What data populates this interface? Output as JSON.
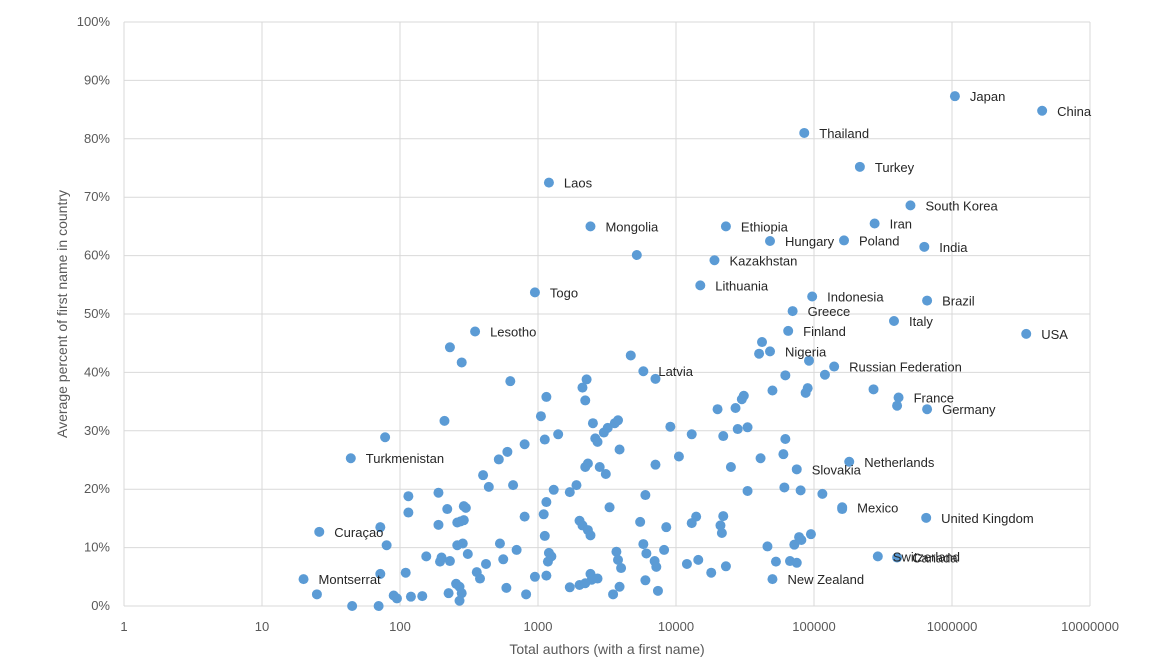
{
  "chart_data": {
    "type": "scatter",
    "xlabel": "Total authors (with a first name)",
    "ylabel": "Average percent of first name in country",
    "x_scale": "log",
    "xlim": [
      1,
      10000000
    ],
    "ylim": [
      0,
      1
    ],
    "x_ticks": [
      "1",
      "10",
      "100",
      "1000",
      "10000",
      "100000",
      "1000000",
      "10000000"
    ],
    "y_ticks": [
      "0%",
      "10%",
      "20%",
      "30%",
      "40%",
      "50%",
      "60%",
      "70%",
      "80%",
      "90%",
      "100%"
    ],
    "grid": true,
    "marker_color": "#5b9bd5",
    "labeled_points": [
      {
        "label": "Japan",
        "x": 1050000,
        "y": 0.873
      },
      {
        "label": "China",
        "x": 4500000,
        "y": 0.848
      },
      {
        "label": "Thailand",
        "x": 85000,
        "y": 0.81
      },
      {
        "label": "Turkey",
        "x": 215000,
        "y": 0.752
      },
      {
        "label": "Laos",
        "x": 1200,
        "y": 0.725
      },
      {
        "label": "South Korea",
        "x": 500000,
        "y": 0.686
      },
      {
        "label": "Iran",
        "x": 275000,
        "y": 0.655
      },
      {
        "label": "Mongolia",
        "x": 2400,
        "y": 0.65
      },
      {
        "label": "Ethiopia",
        "x": 23000,
        "y": 0.65
      },
      {
        "label": "Hungary",
        "x": 48000,
        "y": 0.625
      },
      {
        "label": "Poland",
        "x": 165000,
        "y": 0.626
      },
      {
        "label": "India",
        "x": 630000,
        "y": 0.615
      },
      {
        "label": "Kazakhstan",
        "x": 19000,
        "y": 0.592
      },
      {
        "label": "Lithuania",
        "x": 15000,
        "y": 0.549
      },
      {
        "label": "Togo",
        "x": 950,
        "y": 0.537
      },
      {
        "label": "Indonesia",
        "x": 97000,
        "y": 0.53
      },
      {
        "label": "Brazil",
        "x": 660000,
        "y": 0.523
      },
      {
        "label": "Greece",
        "x": 70000,
        "y": 0.505
      },
      {
        "label": "Italy",
        "x": 380000,
        "y": 0.488
      },
      {
        "label": "Lesotho",
        "x": 350,
        "y": 0.47
      },
      {
        "label": "Finland",
        "x": 65000,
        "y": 0.471
      },
      {
        "label": "USA",
        "x": 3450000,
        "y": 0.466
      },
      {
        "label": "Nigeria",
        "x": 48000,
        "y": 0.436
      },
      {
        "label": "Russian Federation",
        "x": 140000,
        "y": 0.41
      },
      {
        "label": "Latvia",
        "x": 5800,
        "y": 0.402
      },
      {
        "label": "France",
        "x": 410000,
        "y": 0.357
      },
      {
        "label": "Germany",
        "x": 660000,
        "y": 0.337
      },
      {
        "label": "Turkmenistan",
        "x": 44,
        "y": 0.253
      },
      {
        "label": "Netherlands",
        "x": 180000,
        "y": 0.247
      },
      {
        "label": "Slovakia",
        "x": 75000,
        "y": 0.234
      },
      {
        "label": "Mexico",
        "x": 160000,
        "y": 0.169
      },
      {
        "label": "United Kingdom",
        "x": 650000,
        "y": 0.151
      },
      {
        "label": "Curaçao",
        "x": 26,
        "y": 0.127
      },
      {
        "label": "Canada",
        "x": 400000,
        "y": 0.083
      },
      {
        "label": "Switzerland",
        "x": 290000,
        "y": 0.085
      },
      {
        "label": "New Zealand",
        "x": 50000,
        "y": 0.046
      },
      {
        "label": "Montserrat",
        "x": 20,
        "y": 0.046
      }
    ],
    "points": [
      {
        "x": 280,
        "y": 0.417
      },
      {
        "x": 630,
        "y": 0.385
      },
      {
        "x": 230,
        "y": 0.443
      },
      {
        "x": 2100,
        "y": 0.374
      },
      {
        "x": 1150,
        "y": 0.358
      },
      {
        "x": 2200,
        "y": 0.352
      },
      {
        "x": 4700,
        "y": 0.429
      },
      {
        "x": 7100,
        "y": 0.389
      },
      {
        "x": 2250,
        "y": 0.388
      },
      {
        "x": 5200,
        "y": 0.601
      },
      {
        "x": 210,
        "y": 0.317
      },
      {
        "x": 78,
        "y": 0.289
      },
      {
        "x": 1050,
        "y": 0.325
      },
      {
        "x": 1400,
        "y": 0.294
      },
      {
        "x": 2500,
        "y": 0.313
      },
      {
        "x": 3000,
        "y": 0.297
      },
      {
        "x": 3200,
        "y": 0.305
      },
      {
        "x": 3600,
        "y": 0.313
      },
      {
        "x": 3800,
        "y": 0.318
      },
      {
        "x": 2600,
        "y": 0.287
      },
      {
        "x": 2700,
        "y": 0.281
      },
      {
        "x": 1120,
        "y": 0.285
      },
      {
        "x": 800,
        "y": 0.277
      },
      {
        "x": 600,
        "y": 0.264
      },
      {
        "x": 520,
        "y": 0.251
      },
      {
        "x": 400,
        "y": 0.224
      },
      {
        "x": 440,
        "y": 0.204
      },
      {
        "x": 660,
        "y": 0.207
      },
      {
        "x": 3900,
        "y": 0.268
      },
      {
        "x": 2200,
        "y": 0.238
      },
      {
        "x": 2300,
        "y": 0.244
      },
      {
        "x": 2800,
        "y": 0.238
      },
      {
        "x": 3100,
        "y": 0.226
      },
      {
        "x": 7100,
        "y": 0.242
      },
      {
        "x": 9100,
        "y": 0.307
      },
      {
        "x": 10500,
        "y": 0.256
      },
      {
        "x": 1900,
        "y": 0.207
      },
      {
        "x": 1700,
        "y": 0.195
      },
      {
        "x": 1300,
        "y": 0.199
      },
      {
        "x": 1150,
        "y": 0.178
      },
      {
        "x": 6000,
        "y": 0.19
      },
      {
        "x": 3300,
        "y": 0.169
      },
      {
        "x": 13000,
        "y": 0.294
      },
      {
        "x": 20000,
        "y": 0.337
      },
      {
        "x": 27000,
        "y": 0.339
      },
      {
        "x": 30000,
        "y": 0.354
      },
      {
        "x": 31000,
        "y": 0.36
      },
      {
        "x": 33000,
        "y": 0.306
      },
      {
        "x": 28000,
        "y": 0.303
      },
      {
        "x": 22000,
        "y": 0.291
      },
      {
        "x": 42000,
        "y": 0.452
      },
      {
        "x": 40000,
        "y": 0.432
      },
      {
        "x": 92000,
        "y": 0.42
      },
      {
        "x": 62000,
        "y": 0.395
      },
      {
        "x": 90000,
        "y": 0.373
      },
      {
        "x": 87000,
        "y": 0.365
      },
      {
        "x": 50000,
        "y": 0.369
      },
      {
        "x": 120000,
        "y": 0.396
      },
      {
        "x": 270000,
        "y": 0.371
      },
      {
        "x": 400000,
        "y": 0.343
      },
      {
        "x": 62000,
        "y": 0.286
      },
      {
        "x": 60000,
        "y": 0.26
      },
      {
        "x": 41000,
        "y": 0.253
      },
      {
        "x": 25000,
        "y": 0.238
      },
      {
        "x": 33000,
        "y": 0.197
      },
      {
        "x": 61000,
        "y": 0.203
      },
      {
        "x": 80000,
        "y": 0.198
      },
      {
        "x": 115000,
        "y": 0.192
      },
      {
        "x": 160000,
        "y": 0.166
      },
      {
        "x": 14000,
        "y": 0.153
      },
      {
        "x": 13000,
        "y": 0.142
      },
      {
        "x": 22000,
        "y": 0.154
      },
      {
        "x": 21000,
        "y": 0.138
      },
      {
        "x": 21500,
        "y": 0.125
      },
      {
        "x": 8500,
        "y": 0.135
      },
      {
        "x": 5500,
        "y": 0.144
      },
      {
        "x": 2000,
        "y": 0.146
      },
      {
        "x": 2100,
        "y": 0.138
      },
      {
        "x": 2300,
        "y": 0.13
      },
      {
        "x": 2400,
        "y": 0.121
      },
      {
        "x": 1100,
        "y": 0.157
      },
      {
        "x": 1120,
        "y": 0.12
      },
      {
        "x": 800,
        "y": 0.153
      },
      {
        "x": 700,
        "y": 0.096
      },
      {
        "x": 530,
        "y": 0.107
      },
      {
        "x": 560,
        "y": 0.08
      },
      {
        "x": 1200,
        "y": 0.091
      },
      {
        "x": 1250,
        "y": 0.085
      },
      {
        "x": 1180,
        "y": 0.076
      },
      {
        "x": 1150,
        "y": 0.052
      },
      {
        "x": 950,
        "y": 0.05
      },
      {
        "x": 820,
        "y": 0.02
      },
      {
        "x": 590,
        "y": 0.031
      },
      {
        "x": 380,
        "y": 0.047
      },
      {
        "x": 360,
        "y": 0.058
      },
      {
        "x": 420,
        "y": 0.072
      },
      {
        "x": 310,
        "y": 0.089
      },
      {
        "x": 285,
        "y": 0.107
      },
      {
        "x": 260,
        "y": 0.104
      },
      {
        "x": 275,
        "y": 0.145
      },
      {
        "x": 290,
        "y": 0.147
      },
      {
        "x": 300,
        "y": 0.168
      },
      {
        "x": 290,
        "y": 0.171
      },
      {
        "x": 260,
        "y": 0.143
      },
      {
        "x": 220,
        "y": 0.166
      },
      {
        "x": 190,
        "y": 0.139
      },
      {
        "x": 190,
        "y": 0.194
      },
      {
        "x": 115,
        "y": 0.188
      },
      {
        "x": 115,
        "y": 0.16
      },
      {
        "x": 72,
        "y": 0.135
      },
      {
        "x": 80,
        "y": 0.104
      },
      {
        "x": 155,
        "y": 0.085
      },
      {
        "x": 200,
        "y": 0.083
      },
      {
        "x": 195,
        "y": 0.076
      },
      {
        "x": 230,
        "y": 0.077
      },
      {
        "x": 110,
        "y": 0.057
      },
      {
        "x": 72,
        "y": 0.055
      },
      {
        "x": 45,
        "y": 0.0
      },
      {
        "x": 70,
        "y": 0.0
      },
      {
        "x": 25,
        "y": 0.02
      },
      {
        "x": 90,
        "y": 0.018
      },
      {
        "x": 95,
        "y": 0.013
      },
      {
        "x": 120,
        "y": 0.016
      },
      {
        "x": 145,
        "y": 0.017
      },
      {
        "x": 225,
        "y": 0.022
      },
      {
        "x": 255,
        "y": 0.038
      },
      {
        "x": 270,
        "y": 0.033
      },
      {
        "x": 280,
        "y": 0.022
      },
      {
        "x": 270,
        "y": 0.009
      },
      {
        "x": 1700,
        "y": 0.032
      },
      {
        "x": 2000,
        "y": 0.036
      },
      {
        "x": 2200,
        "y": 0.039
      },
      {
        "x": 2450,
        "y": 0.045
      },
      {
        "x": 2400,
        "y": 0.055
      },
      {
        "x": 2700,
        "y": 0.047
      },
      {
        "x": 3500,
        "y": 0.02
      },
      {
        "x": 3900,
        "y": 0.033
      },
      {
        "x": 3700,
        "y": 0.093
      },
      {
        "x": 3800,
        "y": 0.079
      },
      {
        "x": 4000,
        "y": 0.065
      },
      {
        "x": 5800,
        "y": 0.106
      },
      {
        "x": 6100,
        "y": 0.09
      },
      {
        "x": 6000,
        "y": 0.044
      },
      {
        "x": 7000,
        "y": 0.077
      },
      {
        "x": 7200,
        "y": 0.067
      },
      {
        "x": 7400,
        "y": 0.026
      },
      {
        "x": 8200,
        "y": 0.096
      },
      {
        "x": 12000,
        "y": 0.072
      },
      {
        "x": 14500,
        "y": 0.079
      },
      {
        "x": 18000,
        "y": 0.057
      },
      {
        "x": 23000,
        "y": 0.068
      },
      {
        "x": 46000,
        "y": 0.102
      },
      {
        "x": 53000,
        "y": 0.076
      },
      {
        "x": 67000,
        "y": 0.077
      },
      {
        "x": 75000,
        "y": 0.074
      },
      {
        "x": 72000,
        "y": 0.105
      },
      {
        "x": 78000,
        "y": 0.118
      },
      {
        "x": 81000,
        "y": 0.113
      },
      {
        "x": 95000,
        "y": 0.123
      }
    ]
  }
}
